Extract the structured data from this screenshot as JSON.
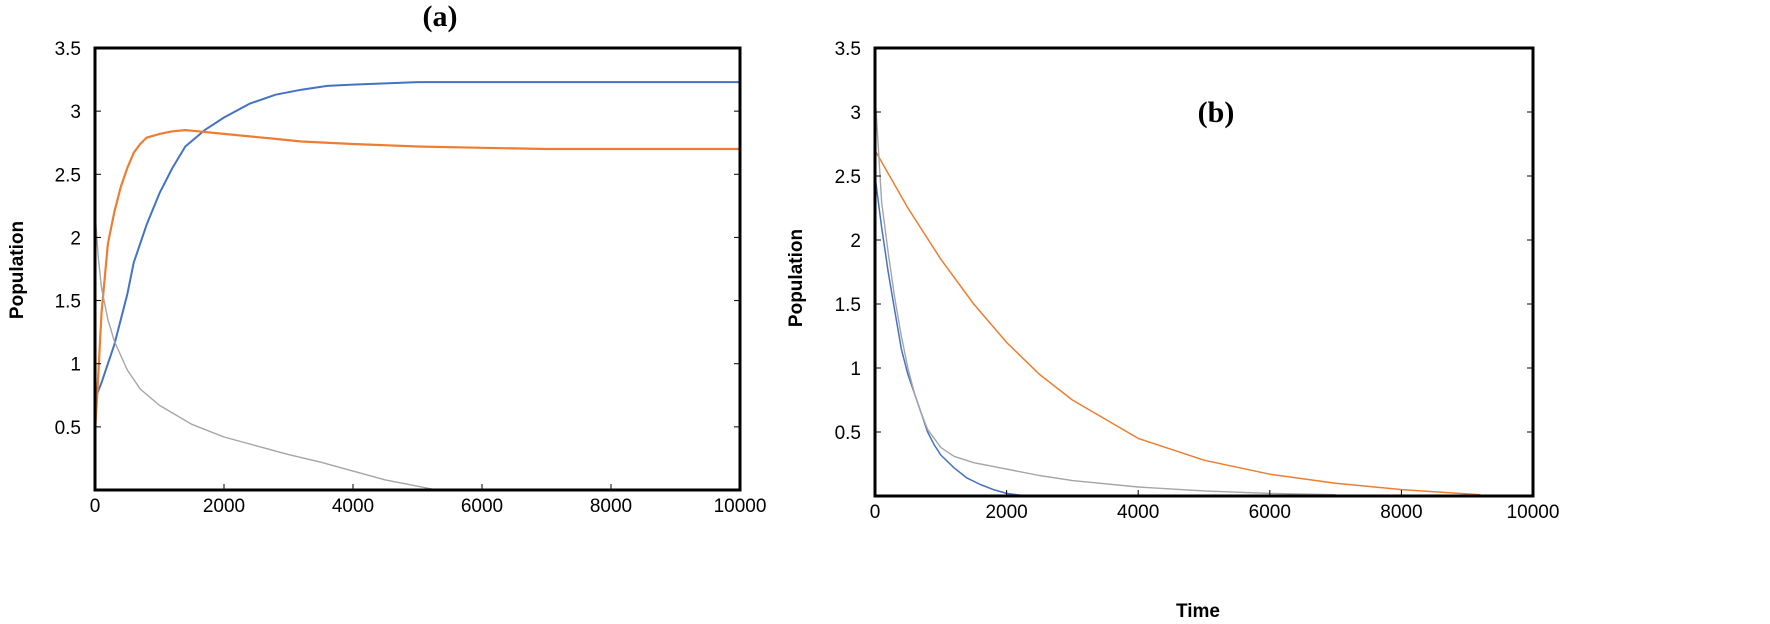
{
  "chart_data": [
    {
      "type": "line",
      "panel_label": "(a)",
      "xlabel": "",
      "ylabel": "Population",
      "xlim": [
        0,
        10000
      ],
      "ylim": [
        0,
        3.5
      ],
      "xticks": [
        "0",
        "2000",
        "4000",
        "6000",
        "8000",
        "10000"
      ],
      "yticks": [
        "0.5",
        "1",
        "1.5",
        "2",
        "2.5",
        "3",
        "3.5"
      ],
      "grid": false,
      "series": [
        {
          "color": "#4472c4",
          "x": [
            0,
            100,
            200,
            300,
            500,
            600,
            800,
            1000,
            1200,
            1400,
            1700,
            2000,
            2400,
            2800,
            3200,
            3600,
            4000,
            4500,
            5000,
            6000,
            7000,
            8000,
            9000,
            10000
          ],
          "y": [
            0.72,
            0.85,
            1.0,
            1.15,
            1.55,
            1.8,
            2.1,
            2.35,
            2.55,
            2.72,
            2.85,
            2.95,
            3.06,
            3.13,
            3.17,
            3.2,
            3.21,
            3.22,
            3.23,
            3.23,
            3.23,
            3.23,
            3.23,
            3.23
          ]
        },
        {
          "color": "#ed7d31",
          "x": [
            0,
            50,
            100,
            200,
            300,
            400,
            500,
            600,
            700,
            800,
            1000,
            1200,
            1400,
            1600,
            1800,
            2000,
            2400,
            2800,
            3200,
            4000,
            5000,
            6000,
            7000,
            8000,
            9000,
            10000
          ],
          "y": [
            0.45,
            0.9,
            1.4,
            1.95,
            2.2,
            2.4,
            2.55,
            2.67,
            2.74,
            2.79,
            2.82,
            2.84,
            2.85,
            2.84,
            2.83,
            2.82,
            2.8,
            2.78,
            2.76,
            2.74,
            2.72,
            2.71,
            2.7,
            2.7,
            2.7,
            2.7
          ]
        },
        {
          "color": "#a5a5a5",
          "x": [
            0,
            50,
            100,
            200,
            300,
            500,
            700,
            1000,
            1500,
            2000,
            2500,
            3000,
            3500,
            4000,
            4500,
            5000,
            5300,
            6000
          ],
          "y": [
            2.2,
            1.85,
            1.6,
            1.35,
            1.18,
            0.95,
            0.8,
            0.67,
            0.52,
            0.42,
            0.35,
            0.28,
            0.22,
            0.15,
            0.08,
            0.03,
            0.0,
            0.0
          ]
        }
      ]
    },
    {
      "type": "line",
      "panel_label": "(b)",
      "xlabel": "Time",
      "ylabel": "Population",
      "xlim": [
        0,
        10000
      ],
      "ylim": [
        0,
        3.5
      ],
      "xticks": [
        "0",
        "2000",
        "4000",
        "6000",
        "8000",
        "10000"
      ],
      "yticks": [
        "0.5",
        "1",
        "1.5",
        "2",
        "2.5",
        "3",
        "3.5"
      ],
      "grid": false,
      "series": [
        {
          "color": "#4472c4",
          "x": [
            0,
            100,
            200,
            300,
            400,
            500,
            600,
            700,
            800,
            900,
            1000,
            1200,
            1400,
            1600,
            1800,
            2000,
            2300
          ],
          "y": [
            2.5,
            2.1,
            1.75,
            1.45,
            1.15,
            0.95,
            0.8,
            0.65,
            0.5,
            0.4,
            0.32,
            0.22,
            0.14,
            0.09,
            0.05,
            0.02,
            0.0
          ]
        },
        {
          "color": "#ed7d31",
          "x": [
            0,
            500,
            1000,
            1500,
            2000,
            2500,
            3000,
            4000,
            5000,
            6000,
            7000,
            8000,
            9200
          ],
          "y": [
            2.7,
            2.25,
            1.85,
            1.5,
            1.2,
            0.95,
            0.75,
            0.45,
            0.28,
            0.17,
            0.1,
            0.05,
            0.01
          ]
        },
        {
          "color": "#a5a5a5",
          "x": [
            0,
            100,
            200,
            300,
            400,
            500,
            600,
            700,
            800,
            1000,
            1200,
            1500,
            2000,
            2500,
            3000,
            4000,
            5000,
            6000,
            7000
          ],
          "y": [
            3.15,
            2.3,
            1.9,
            1.55,
            1.25,
            1.0,
            0.8,
            0.65,
            0.52,
            0.38,
            0.31,
            0.26,
            0.21,
            0.16,
            0.12,
            0.07,
            0.04,
            0.02,
            0.01
          ]
        }
      ]
    }
  ]
}
